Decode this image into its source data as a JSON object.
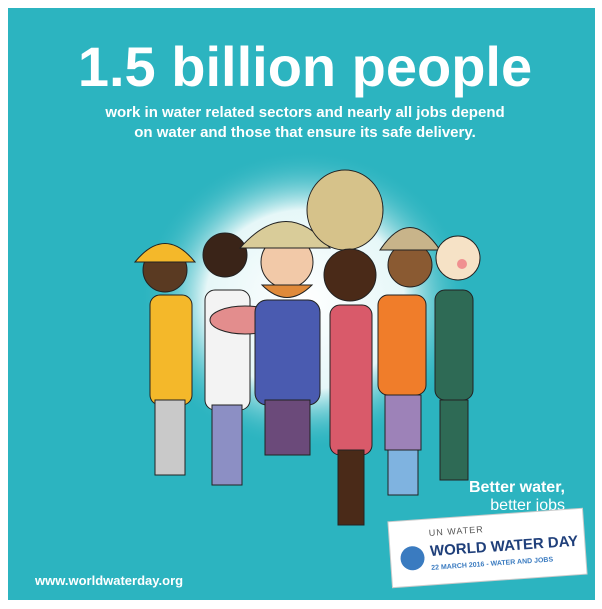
{
  "header": {
    "title": "1.5 billion people",
    "subtitle_lines": [
      "work in water related sectors and nearly all jobs depend",
      "on water and those that ensure its safe delivery."
    ]
  },
  "tagline": {
    "line1": "Better water,",
    "line2": "better jobs"
  },
  "logo": {
    "org": "UN WATER",
    "name": "WORLD WATER DAY",
    "date": "22 MARCH 2016 - WATER AND JOBS"
  },
  "footer": {
    "url": "www.worldwaterday.org"
  }
}
